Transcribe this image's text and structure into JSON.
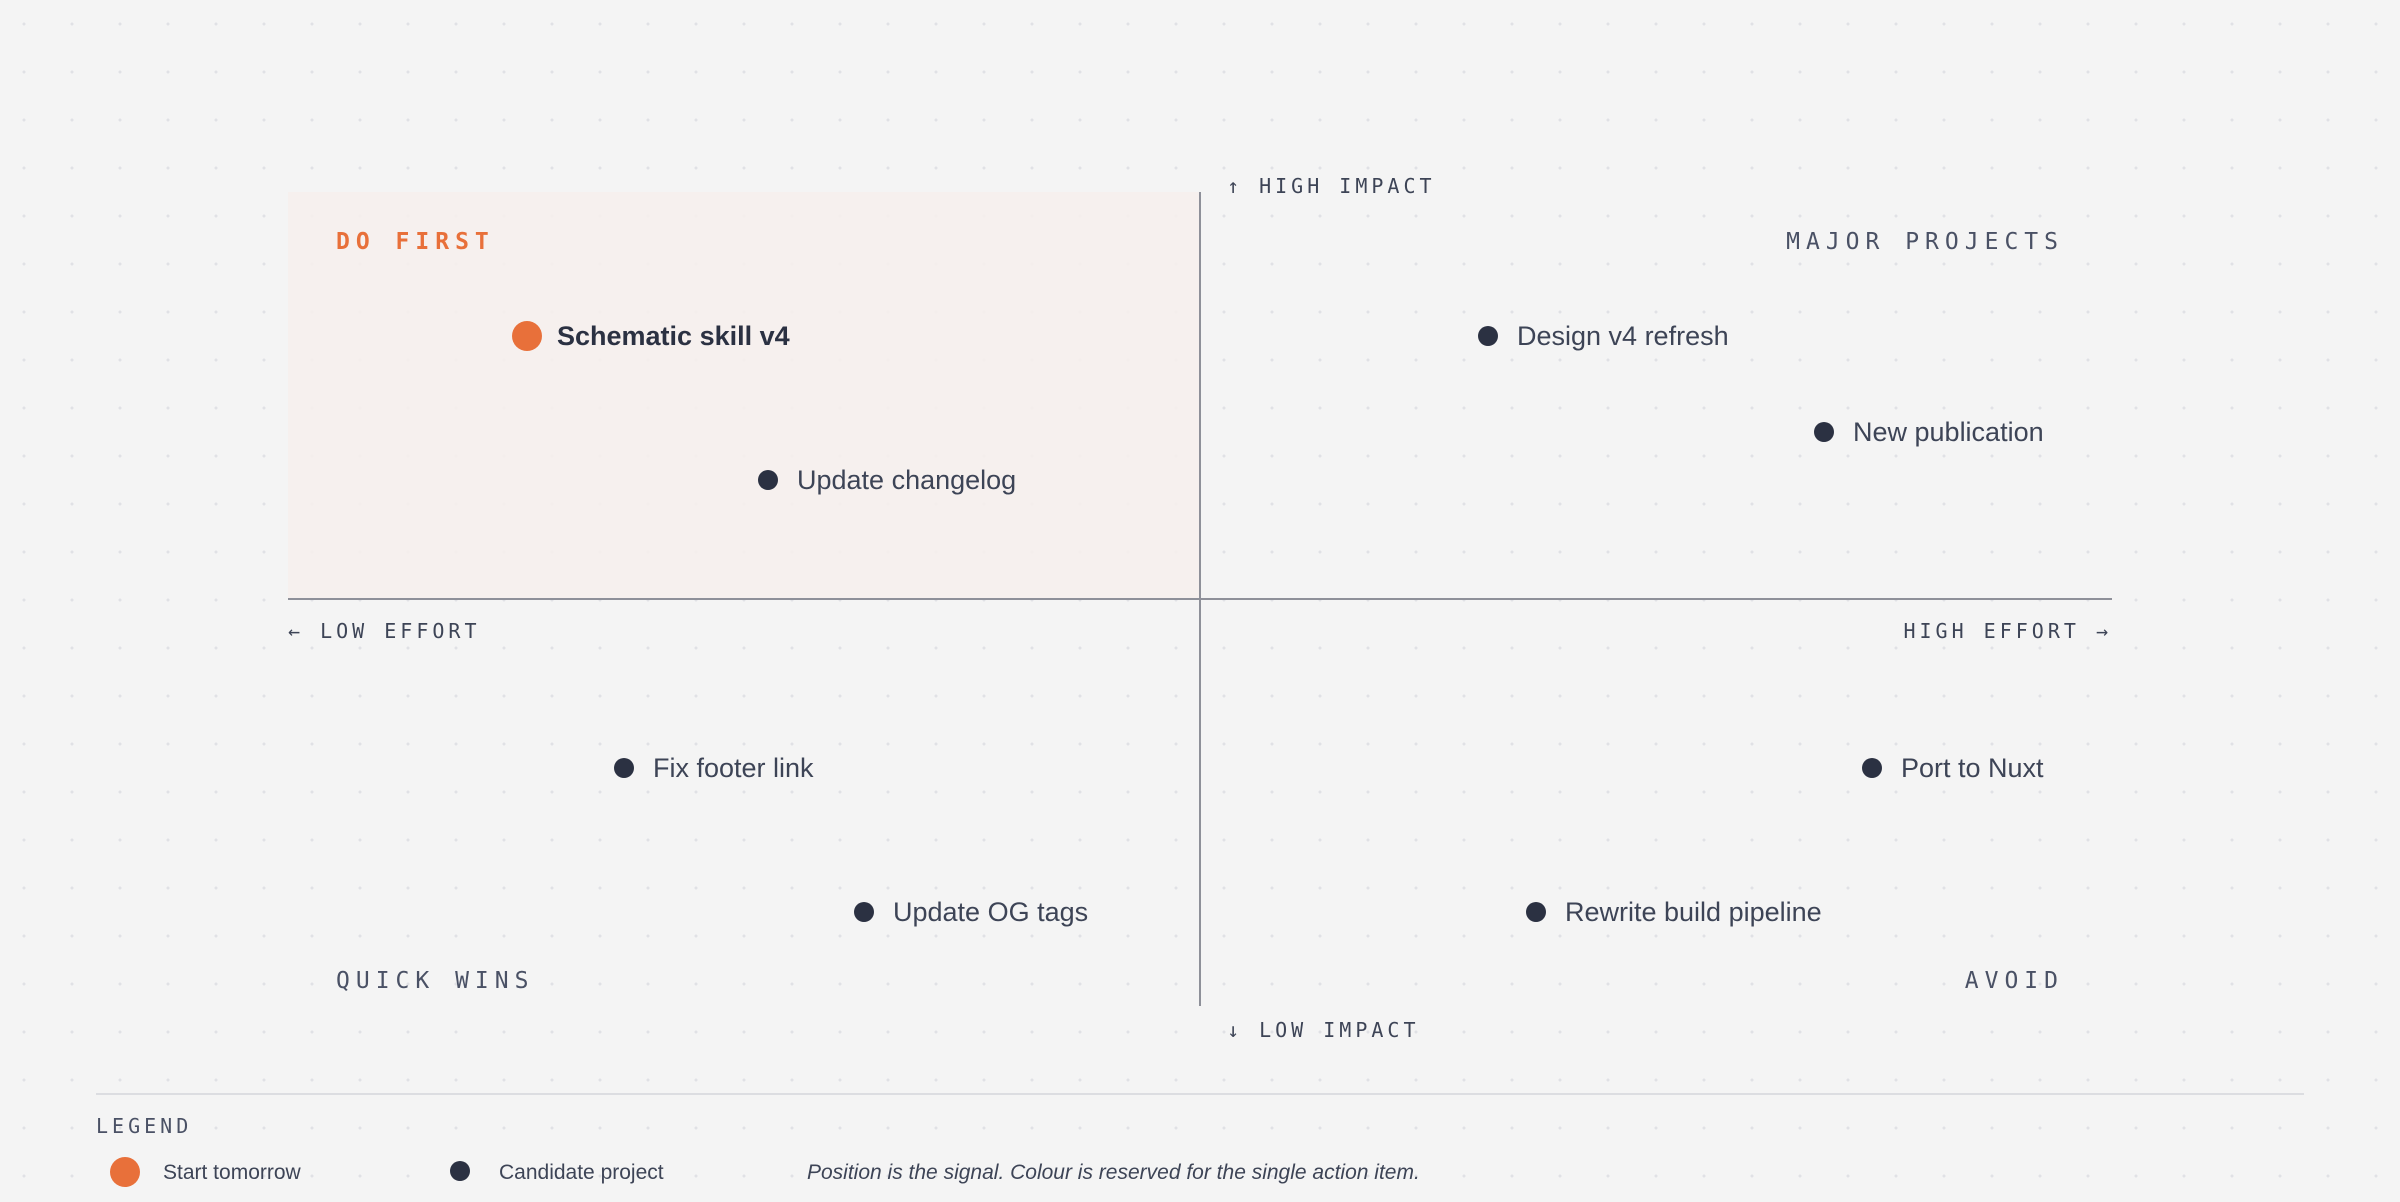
{
  "axes": {
    "top": "↑ HIGH IMPACT",
    "bottom": "↓ LOW IMPACT",
    "left": "← LOW EFFORT",
    "right": "HIGH EFFORT →"
  },
  "quadrants": {
    "top_left": "DO FIRST",
    "top_right": "MAJOR PROJECTS",
    "bottom_left": "QUICK WINS",
    "bottom_right": "AVOID"
  },
  "items": [
    {
      "label": "Schematic skill v4",
      "quadrant": "DO FIRST",
      "accent": true
    },
    {
      "label": "Update changelog",
      "quadrant": "DO FIRST",
      "accent": false
    },
    {
      "label": "Design v4 refresh",
      "quadrant": "MAJOR PROJECTS",
      "accent": false
    },
    {
      "label": "New publication",
      "quadrant": "MAJOR PROJECTS",
      "accent": false
    },
    {
      "label": "Fix footer link",
      "quadrant": "QUICK WINS",
      "accent": false
    },
    {
      "label": "Update OG tags",
      "quadrant": "QUICK WINS",
      "accent": false
    },
    {
      "label": "Port to Nuxt",
      "quadrant": "AVOID",
      "accent": false
    },
    {
      "label": "Rewrite build pipeline",
      "quadrant": "AVOID",
      "accent": false
    }
  ],
  "legend": {
    "title": "LEGEND",
    "entries": [
      {
        "label": "Start tomorrow",
        "color": "#e8703a"
      },
      {
        "label": "Candidate project",
        "color": "#2b3142"
      }
    ],
    "note": "Position is the signal. Colour is reserved for the single action item."
  },
  "colors": {
    "accent": "#e8703a",
    "ink": "#2b3142",
    "background": "#f4f4f4",
    "highlight_zone": "#f5efed",
    "axis": "#8e9099"
  }
}
